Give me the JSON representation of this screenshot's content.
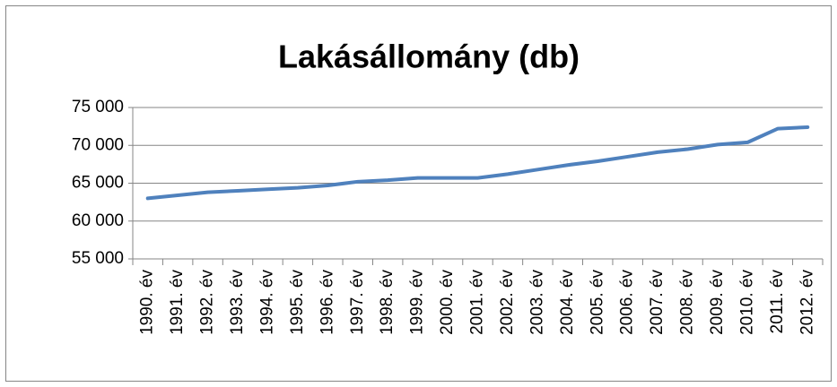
{
  "chart_data": {
    "type": "line",
    "title": "Lakásállomány (db)",
    "categories": [
      "1990. év",
      "1991. év",
      "1992. év",
      "1993. év",
      "1994. év",
      "1995. év",
      "1996. év",
      "1997. év",
      "1998. év",
      "1999. év",
      "2000. év",
      "2001. év",
      "2002. év",
      "2003. év",
      "2004. év",
      "2005. év",
      "2006. év",
      "2007. év",
      "2008. év",
      "2009. év",
      "2010. év",
      "2011. év",
      "2012. év"
    ],
    "series": [
      {
        "name": "Lakásállomány",
        "color": "#4f81bd",
        "values": [
          63000,
          63400,
          63800,
          64000,
          64200,
          64400,
          64700,
          65200,
          65400,
          65700,
          65700,
          65700,
          66200,
          66800,
          67400,
          67900,
          68500,
          69100,
          69500,
          70100,
          70400,
          72200,
          72400
        ]
      }
    ],
    "ylim": [
      55000,
      75000
    ],
    "yticks": [
      {
        "value": 55000,
        "label": "55 000"
      },
      {
        "value": 60000,
        "label": "60 000"
      },
      {
        "value": 65000,
        "label": "65 000"
      },
      {
        "value": 70000,
        "label": "70 000"
      },
      {
        "value": 75000,
        "label": "75 000"
      }
    ],
    "grid": true
  }
}
